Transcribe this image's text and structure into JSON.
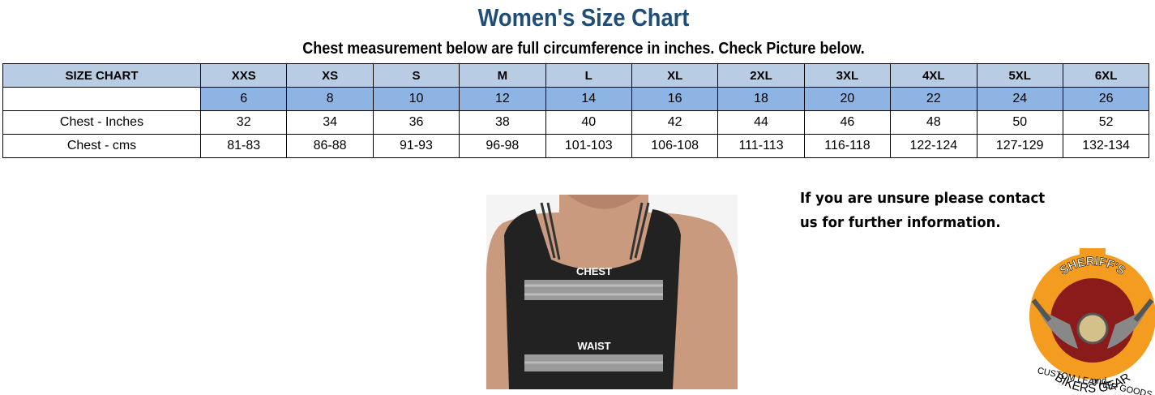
{
  "header": {
    "title": "Women's Size Chart",
    "subtitle": "Chest measurement below are full circumference in inches. Check Picture below."
  },
  "table": {
    "columns": [
      "SIZE CHART",
      "XXS",
      "XS",
      "S",
      "M",
      "L",
      "XL",
      "2XL",
      "3XL",
      "4XL",
      "5XL",
      "6XL"
    ],
    "rows": [
      {
        "label": null,
        "cells": [
          "6",
          "8",
          "10",
          "12",
          "14",
          "16",
          "18",
          "20",
          "22",
          "24",
          "26"
        ]
      },
      {
        "label": "Chest - Inches",
        "cells": [
          "32",
          "34",
          "36",
          "38",
          "40",
          "42",
          "44",
          "46",
          "48",
          "50",
          "52"
        ]
      },
      {
        "label": "Chest - cms",
        "cells": [
          "81-83",
          "86-88",
          "91-93",
          "96-98",
          "101-103",
          "106-108",
          "111-113",
          "116-118",
          "122-124",
          "127-129",
          "132-134"
        ]
      }
    ]
  },
  "note": [
    "If you are unsure please contact",
    "us for further information."
  ],
  "figure": {
    "labels": [
      "CHEST",
      "WAIST"
    ]
  },
  "logo": {
    "top": "SHERIFF'S",
    "bottom": "BIKERS GEAR",
    "and": "and",
    "tagline": "CUSTOM LEATHER GOODS"
  }
}
